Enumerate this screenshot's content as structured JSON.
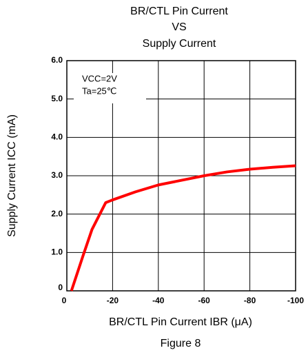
{
  "chart_data": {
    "type": "line",
    "title": [
      "BR/CTL Pin Current",
      "VS",
      "Supply Current"
    ],
    "xlabel": "BR/CTL Pin Current IBR (μA)",
    "ylabel": "Supply Current ICC (mA)",
    "annotations": [
      "VCC=2V",
      "Ta=25℃"
    ],
    "caption": "Figure 8",
    "x": [
      -2,
      -7,
      -11,
      -17,
      -20,
      -30,
      -40,
      -50,
      -60,
      -70,
      -80,
      -90,
      -100
    ],
    "series": [
      {
        "name": "ICC",
        "color": "#ff0000",
        "values": [
          0,
          0.9,
          1.6,
          2.3,
          2.37,
          2.58,
          2.76,
          2.88,
          3.0,
          3.1,
          3.17,
          3.22,
          3.26
        ]
      }
    ],
    "xlim": [
      0,
      -100
    ],
    "xticks": [
      0,
      -20,
      -40,
      -60,
      -80,
      -100
    ],
    "ylim": [
      0,
      6
    ],
    "yticks": [
      0,
      {
        "value": 1,
        "label": "1.0"
      },
      {
        "value": 2,
        "label": "2.0"
      },
      {
        "value": 3,
        "label": "3.0"
      },
      {
        "value": 4,
        "label": "4.0"
      },
      {
        "value": 5,
        "label": "5.0"
      },
      {
        "value": 6,
        "label": "6.0"
      }
    ],
    "grid": true
  }
}
